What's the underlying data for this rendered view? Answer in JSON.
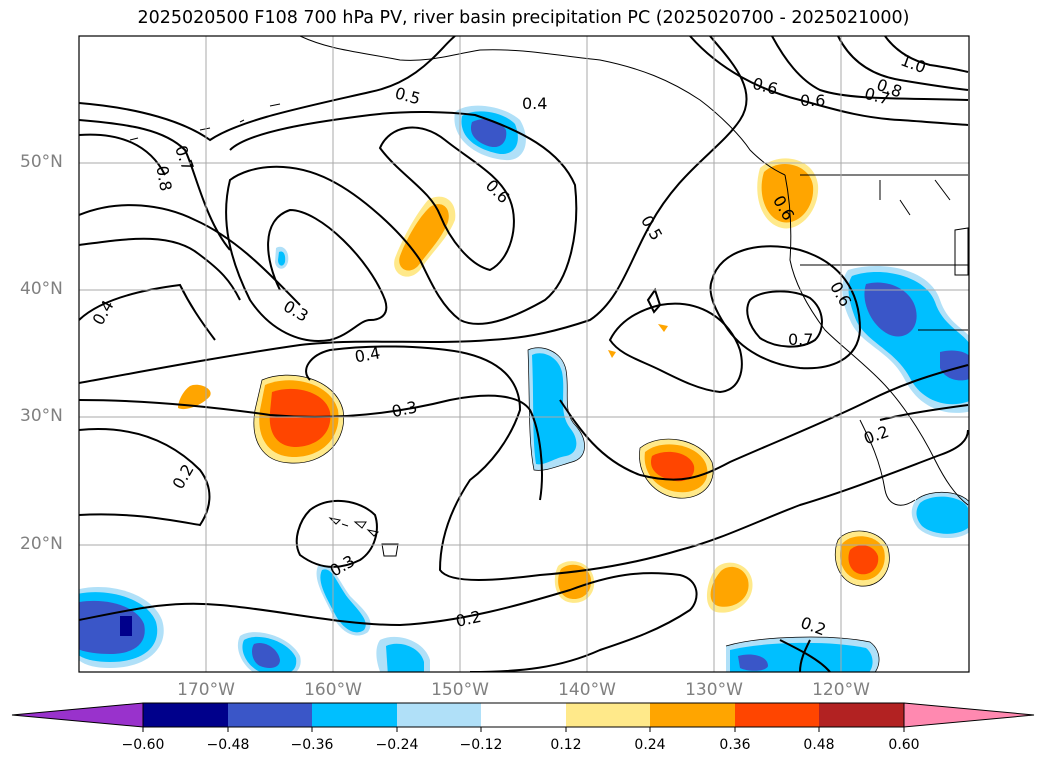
{
  "title": "2025020500 F108 700 hPa PV, river basin precipitation PC (2025020700 - 2025021000)",
  "map": {
    "lat_labels": [
      "50°N",
      "40°N",
      "30°N",
      "20°N"
    ],
    "lon_labels": [
      "170°W",
      "160°W",
      "150°W",
      "140°W",
      "130°W",
      "120°W"
    ],
    "contour_labels": [
      "0.5",
      "0.4",
      "0.6",
      "0.7",
      "0.8",
      "1.0",
      "0.8",
      "0.7",
      "0.6",
      "0.6",
      "0.5",
      "0.3",
      "0.4",
      "0.3",
      "0.2",
      "0.4",
      "0.6",
      "0.7",
      "0.2",
      "0.3",
      "0.2",
      "0.2",
      "0.6"
    ],
    "contour_variable": "700 hPa PV",
    "shaded_variable": "river basin precipitation PC"
  },
  "colorbar": {
    "tick_labels": [
      "−0.60",
      "−0.48",
      "−0.36",
      "−0.24",
      "−0.12",
      "0.12",
      "0.24",
      "0.36",
      "0.48",
      "0.60"
    ],
    "colors": [
      "#9932cc",
      "#00008b",
      "#3a56c8",
      "#00bfff",
      "#b0e0f8",
      "#ffffff",
      "#ffe98a",
      "#ffa500",
      "#ff4500",
      "#b22222",
      "#ff89b0"
    ]
  }
}
